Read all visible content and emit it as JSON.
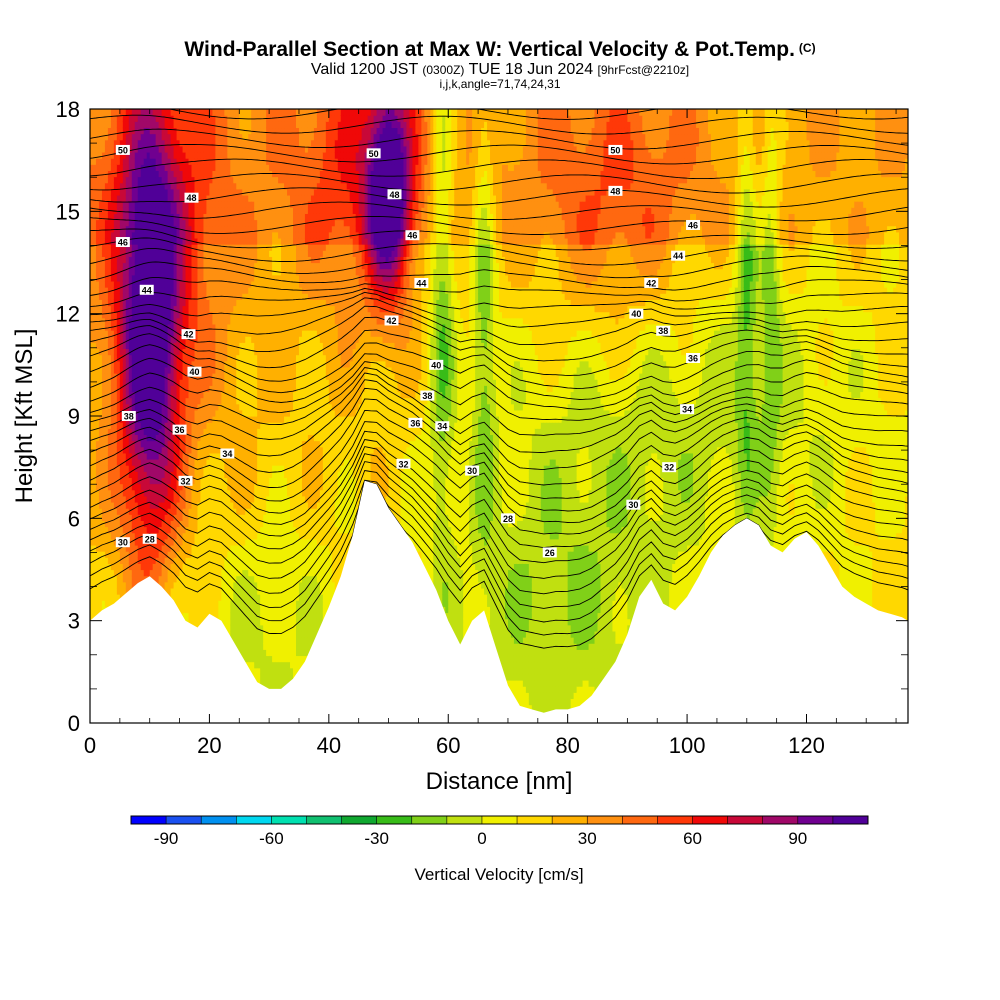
{
  "title": {
    "main": "Wind-Parallel Section at Max W: Vertical Velocity & Pot.Temp.",
    "main_suffix": "(C)",
    "valid_prefix": "Valid 1200 JST",
    "valid_utc": "(0300Z)",
    "valid_date": "TUE 18 Jun 2024",
    "forecast": "[9hrFcst@2210z]",
    "indices": "i,j,k,angle=71,74,24,31"
  },
  "chart_data": {
    "type": "heatmap",
    "xlabel": "Distance [nm]",
    "ylabel": "Height [Kft MSL]",
    "xlim": [
      0,
      137
    ],
    "ylim": [
      0,
      18
    ],
    "x_ticks": [
      0,
      20,
      40,
      60,
      80,
      100,
      120
    ],
    "y_ticks": [
      0,
      3,
      6,
      9,
      12,
      15,
      18
    ],
    "terrain": {
      "x": [
        0,
        2,
        4,
        6,
        8,
        10,
        12,
        14,
        16,
        18,
        20,
        22,
        24,
        26,
        28,
        30,
        32,
        34,
        36,
        38,
        40,
        42,
        44,
        46,
        48,
        50,
        52,
        54,
        56,
        58,
        60,
        62,
        64,
        66,
        68,
        70,
        72,
        74,
        76,
        78,
        80,
        82,
        84,
        86,
        88,
        90,
        92,
        94,
        96,
        98,
        100,
        102,
        104,
        106,
        108,
        110,
        112,
        114,
        116,
        118,
        120,
        122,
        124,
        126,
        128,
        130,
        132,
        134,
        136,
        137
      ],
      "height_kft": [
        3.0,
        3.3,
        3.5,
        3.8,
        4.1,
        4.3,
        4.0,
        3.6,
        3.0,
        2.8,
        3.2,
        3.0,
        2.4,
        1.8,
        1.2,
        1.0,
        1.0,
        1.3,
        1.8,
        2.6,
        3.4,
        4.3,
        5.5,
        7.1,
        7.0,
        6.3,
        5.8,
        5.3,
        4.6,
        3.9,
        3.0,
        2.3,
        3.0,
        3.3,
        2.2,
        1.1,
        0.5,
        0.4,
        0.3,
        0.4,
        0.4,
        0.5,
        0.8,
        1.3,
        1.8,
        2.6,
        3.7,
        4.2,
        3.5,
        3.3,
        3.7,
        4.3,
        5.0,
        5.5,
        5.8,
        6.0,
        5.8,
        5.2,
        5.0,
        5.4,
        5.6,
        5.2,
        4.6,
        4.0,
        3.7,
        3.5,
        3.3,
        3.2,
        3.1,
        3.0
      ]
    },
    "theta_contour_labels": [
      {
        "x": 5.5,
        "y": 5.3,
        "value": "30"
      },
      {
        "x": 10,
        "y": 5.4,
        "value": "28"
      },
      {
        "x": 16,
        "y": 7.1,
        "value": "32"
      },
      {
        "x": 23,
        "y": 7.9,
        "value": "34"
      },
      {
        "x": 15,
        "y": 8.6,
        "value": "36"
      },
      {
        "x": 6.5,
        "y": 9.0,
        "value": "38"
      },
      {
        "x": 17.5,
        "y": 10.3,
        "value": "40"
      },
      {
        "x": 16.5,
        "y": 11.4,
        "value": "42"
      },
      {
        "x": 9.5,
        "y": 12.7,
        "value": "44"
      },
      {
        "x": 5.5,
        "y": 14.1,
        "value": "46"
      },
      {
        "x": 17,
        "y": 15.4,
        "value": "48"
      },
      {
        "x": 5.5,
        "y": 16.8,
        "value": "50"
      },
      {
        "x": 47.5,
        "y": 16.7,
        "value": "50"
      },
      {
        "x": 51,
        "y": 15.5,
        "value": "48"
      },
      {
        "x": 54,
        "y": 14.3,
        "value": "46"
      },
      {
        "x": 55.5,
        "y": 12.9,
        "value": "44"
      },
      {
        "x": 50.5,
        "y": 11.8,
        "value": "42"
      },
      {
        "x": 58,
        "y": 10.5,
        "value": "40"
      },
      {
        "x": 56.5,
        "y": 9.6,
        "value": "38"
      },
      {
        "x": 54.5,
        "y": 8.8,
        "value": "36"
      },
      {
        "x": 59,
        "y": 8.7,
        "value": "34"
      },
      {
        "x": 52.5,
        "y": 7.6,
        "value": "32"
      },
      {
        "x": 64,
        "y": 7.4,
        "value": "30"
      },
      {
        "x": 70,
        "y": 6.0,
        "value": "28"
      },
      {
        "x": 77,
        "y": 5.0,
        "value": "26"
      },
      {
        "x": 88,
        "y": 16.8,
        "value": "50"
      },
      {
        "x": 88,
        "y": 15.6,
        "value": "48"
      },
      {
        "x": 101,
        "y": 14.6,
        "value": "46"
      },
      {
        "x": 98.5,
        "y": 13.7,
        "value": "44"
      },
      {
        "x": 94,
        "y": 12.9,
        "value": "42"
      },
      {
        "x": 91.5,
        "y": 12.0,
        "value": "40"
      },
      {
        "x": 96,
        "y": 11.5,
        "value": "38"
      },
      {
        "x": 101,
        "y": 10.7,
        "value": "36"
      },
      {
        "x": 100,
        "y": 9.2,
        "value": "34"
      },
      {
        "x": 97,
        "y": 7.5,
        "value": "32"
      },
      {
        "x": 91,
        "y": 6.4,
        "value": "30"
      }
    ],
    "colorbar": {
      "title": "Vertical Velocity [cm/s]",
      "tick_values": [
        -90,
        -60,
        -30,
        0,
        30,
        60,
        90
      ],
      "tick_labels": [
        "-90",
        "-60",
        "-30",
        "0",
        "30",
        "60",
        "90"
      ],
      "min": -100,
      "max": 110,
      "colors": [
        "#0000ff",
        "#1a50f0",
        "#0090f0",
        "#00d8f0",
        "#00e0b0",
        "#10c070",
        "#10a830",
        "#38bc18",
        "#80d018",
        "#c0e010",
        "#f0f000",
        "#ffd800",
        "#ffb000",
        "#ff9010",
        "#ff6810",
        "#ff3808",
        "#f00808",
        "#c80838",
        "#a00868",
        "#700090",
        "#500098"
      ]
    },
    "features": [
      {
        "name": "updraft",
        "x": 10,
        "y": 11,
        "w_cm_s": 100
      },
      {
        "name": "updraft",
        "x": 50,
        "y": 15.5,
        "w_cm_s": 100
      },
      {
        "name": "downdraft",
        "x": 59,
        "y": 15,
        "w_cm_s": -20
      },
      {
        "name": "downdraft",
        "x": 110,
        "y": 15,
        "w_cm_s": -15
      }
    ]
  }
}
